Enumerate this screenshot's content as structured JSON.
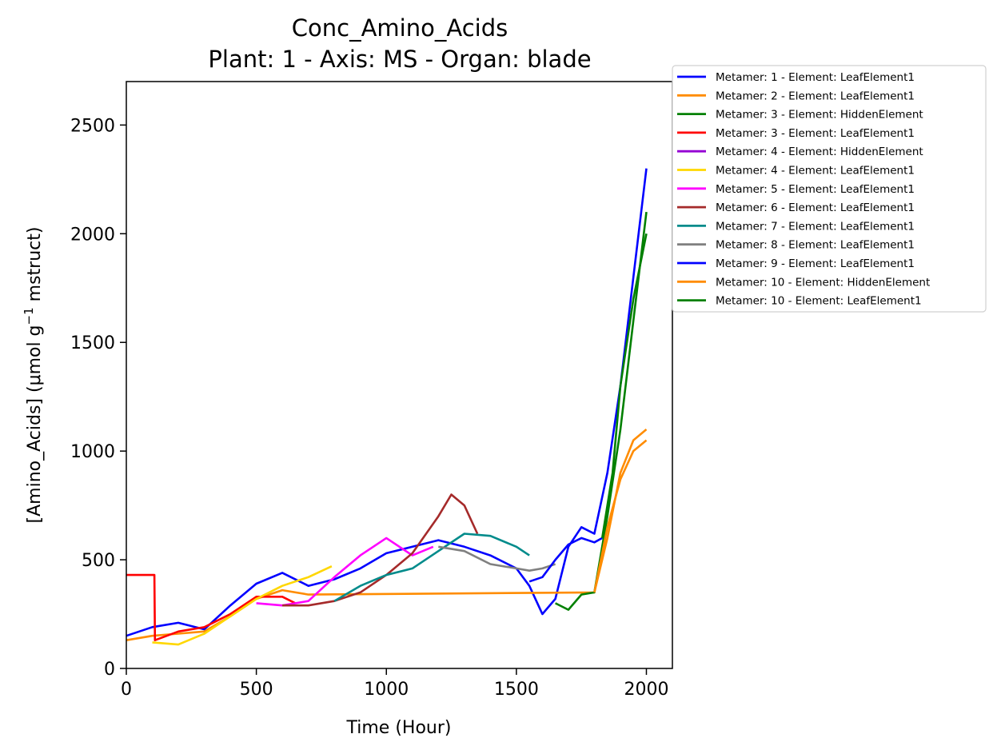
{
  "chart_data": {
    "type": "line",
    "title": "Conc_Amino_Acids",
    "subtitle": "Plant: 1 - Axis: MS - Organ: blade",
    "xlabel": "Time (Hour)",
    "ylabel_main": "[Amino_Acids] (μmol g",
    "ylabel_sup": "−1",
    "ylabel_tail": " mstruct)",
    "xlim": [
      0,
      2100
    ],
    "ylim": [
      0,
      2700
    ],
    "xticks": [
      0,
      500,
      1000,
      1500,
      2000
    ],
    "xtick_labels": [
      "0",
      "500",
      "1000",
      "1500",
      "2000"
    ],
    "yticks": [
      0,
      500,
      1000,
      1500,
      2000,
      2500
    ],
    "ytick_labels": [
      "0",
      "500",
      "1000",
      "1500",
      "2000",
      "2500"
    ],
    "grid": false,
    "legend_position": "outside-right",
    "series": [
      {
        "name": "Metamer: 1 - Element: LeafElement1",
        "color": "#0000ff",
        "x": [
          0,
          100,
          200,
          300,
          400,
          500,
          600,
          700,
          800,
          900,
          1000,
          1100,
          1200,
          1300,
          1400,
          1500,
          1550,
          1600,
          1650,
          1700,
          1750,
          1800,
          1850,
          1900,
          1950,
          2000
        ],
        "y": [
          150,
          190,
          210,
          180,
          290,
          390,
          440,
          380,
          410,
          460,
          530,
          560,
          590,
          560,
          520,
          460,
          380,
          250,
          320,
          560,
          650,
          620,
          900,
          1300,
          1800,
          2300
        ]
      },
      {
        "name": "Metamer: 2 - Element: LeafElement1",
        "color": "#ff8c00",
        "x": [
          0,
          100,
          200,
          300,
          400,
          500,
          600,
          700,
          1800,
          1850,
          1900,
          1950,
          2000
        ],
        "y": [
          130,
          150,
          160,
          170,
          240,
          320,
          360,
          340,
          350,
          600,
          900,
          1050,
          1100
        ]
      },
      {
        "name": "Metamer: 3 - Element: HiddenElement",
        "color": "#008000",
        "x": [
          1650,
          1700,
          1750,
          1800,
          1850,
          1900,
          1950,
          2000
        ],
        "y": [
          300,
          270,
          340,
          350,
          700,
          1100,
          1600,
          2100
        ]
      },
      {
        "name": "Metamer: 3 - Element: LeafElement1",
        "color": "#ff0000",
        "x": [
          0,
          1,
          108,
          110,
          200,
          300,
          400,
          500,
          600,
          650
        ],
        "y": [
          430,
          430,
          430,
          130,
          170,
          190,
          250,
          330,
          330,
          300
        ]
      },
      {
        "name": "Metamer: 4 - Element: HiddenElement",
        "color": "#9400d3",
        "x": [],
        "y": []
      },
      {
        "name": "Metamer: 4 - Element: LeafElement1",
        "color": "#ffd700",
        "x": [
          100,
          200,
          300,
          400,
          500,
          600,
          700,
          790
        ],
        "y": [
          120,
          110,
          160,
          240,
          320,
          380,
          420,
          470
        ]
      },
      {
        "name": "Metamer: 5 - Element: LeafElement1",
        "color": "#ff00ff",
        "x": [
          500,
          600,
          700,
          800,
          900,
          1000,
          1100,
          1180
        ],
        "y": [
          300,
          290,
          310,
          420,
          520,
          600,
          520,
          560
        ]
      },
      {
        "name": "Metamer: 6 - Element: LeafElement1",
        "color": "#a52a2a",
        "x": [
          600,
          700,
          800,
          900,
          1000,
          1100,
          1200,
          1250,
          1300,
          1350
        ],
        "y": [
          290,
          290,
          310,
          350,
          430,
          530,
          700,
          800,
          750,
          620
        ]
      },
      {
        "name": "Metamer: 7 - Element: LeafElement1",
        "color": "#008b8b",
        "x": [
          800,
          900,
          1000,
          1100,
          1200,
          1300,
          1400,
          1500,
          1550
        ],
        "y": [
          310,
          380,
          430,
          460,
          540,
          620,
          610,
          560,
          520
        ]
      },
      {
        "name": "Metamer: 8 - Element: LeafElement1",
        "color": "#808080",
        "x": [
          1200,
          1300,
          1400,
          1500,
          1550,
          1600,
          1650
        ],
        "y": [
          560,
          540,
          480,
          460,
          450,
          460,
          480
        ]
      },
      {
        "name": "Metamer: 9 - Element: LeafElement1",
        "color": "#0000ff",
        "x": [
          1550,
          1600,
          1650,
          1700,
          1750,
          1800,
          1830
        ],
        "y": [
          400,
          420,
          500,
          570,
          600,
          580,
          600
        ]
      },
      {
        "name": "Metamer: 10 - Element: HiddenElement",
        "color": "#ff8c00",
        "x": [
          1800,
          1850,
          1900,
          1950,
          2000
        ],
        "y": [
          350,
          650,
          870,
          1000,
          1050
        ]
      },
      {
        "name": "Metamer: 10 - Element: LeafElement1",
        "color": "#008000",
        "x": [
          1830,
          1870,
          1900,
          1950,
          2000
        ],
        "y": [
          600,
          900,
          1300,
          1700,
          2000
        ]
      }
    ]
  }
}
